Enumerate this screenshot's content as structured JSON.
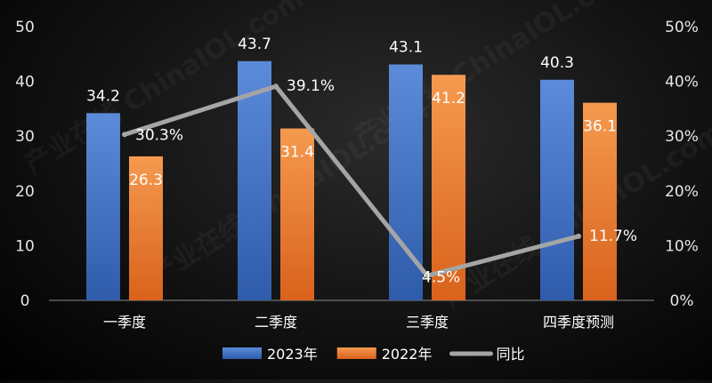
{
  "chart_data": {
    "type": "bar",
    "categories": [
      "一季度",
      "二季度",
      "三季度",
      "四季度预测"
    ],
    "series": [
      {
        "name": "2023年",
        "kind": "bar",
        "axis": "left",
        "values": [
          34.2,
          43.7,
          43.1,
          40.3
        ],
        "labels": [
          "34.2",
          "43.7",
          "43.1",
          "40.3"
        ],
        "color": "#4472C4"
      },
      {
        "name": "2022年",
        "kind": "bar",
        "axis": "left",
        "values": [
          26.3,
          31.4,
          41.2,
          36.1
        ],
        "labels": [
          "26.3",
          "31.4",
          "41.2",
          "36.1"
        ],
        "color": "#ED7D31"
      },
      {
        "name": "同比",
        "kind": "line",
        "axis": "right",
        "values": [
          30.3,
          39.1,
          4.5,
          11.7
        ],
        "labels": [
          "30.3%",
          "39.1%",
          "4.5%",
          "11.7%"
        ],
        "color": "#A5A5A5"
      }
    ],
    "y_left": {
      "min": 0,
      "max": 50,
      "ticks": [
        "0",
        "10",
        "20",
        "30",
        "40",
        "50"
      ]
    },
    "y_right": {
      "min": 0,
      "max": 50,
      "ticks": [
        "0%",
        "10%",
        "20%",
        "30%",
        "40%",
        "50%"
      ]
    },
    "grid": false,
    "legend_position": "bottom",
    "watermark": "产业在线 ChinaIOL.com"
  }
}
